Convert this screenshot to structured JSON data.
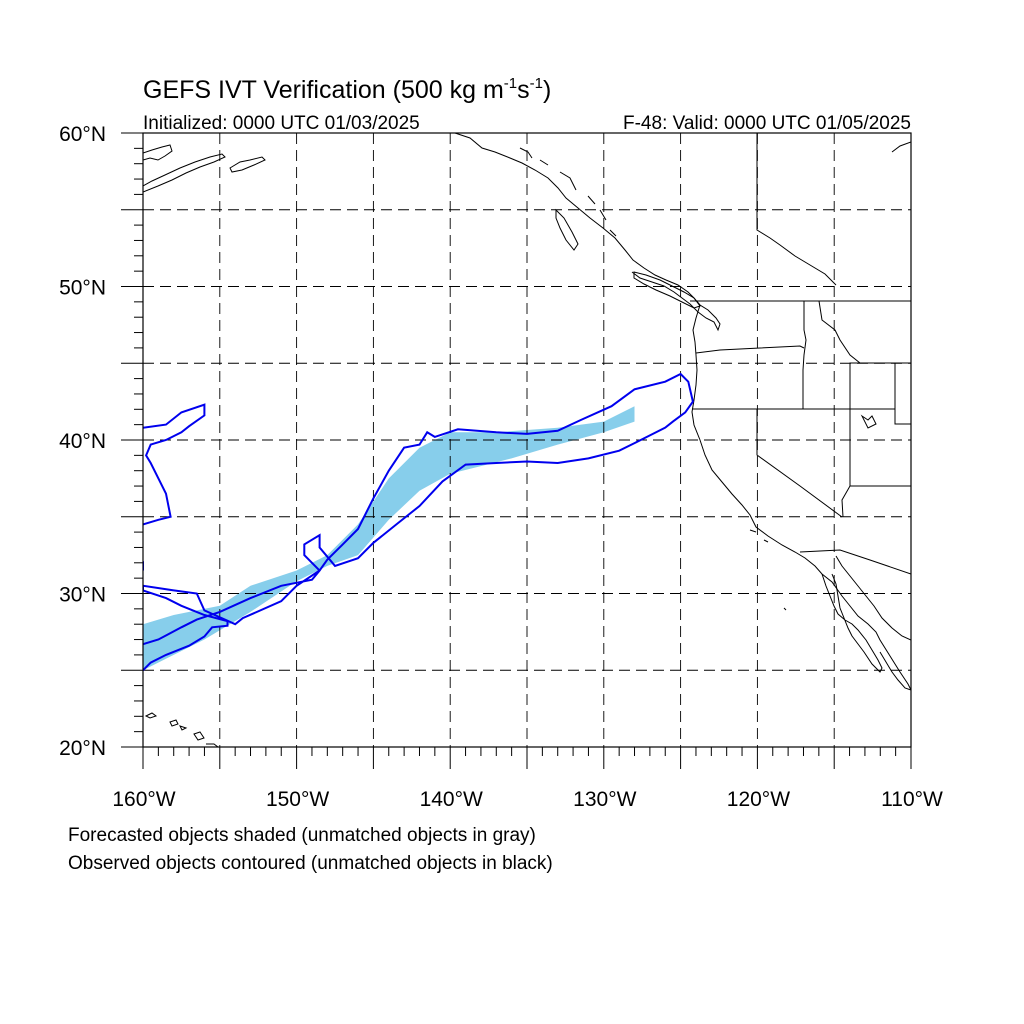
{
  "title": {
    "main": "GEFS IVT Verification (500 kg m",
    "exp1": "-1",
    "mid": "s",
    "exp2": "-1",
    "close": ")"
  },
  "subtitle": {
    "left": "Initialized: 0000 UTC 01/03/2025",
    "right": "F-48: Valid: 0000 UTC 01/05/2025"
  },
  "map": {
    "lon_range": [
      -160,
      -110
    ],
    "lat_range": [
      20,
      60
    ],
    "grid_lons": [
      -155,
      -150,
      -145,
      -140,
      -135,
      -130,
      -125,
      -120,
      -115
    ],
    "grid_lats": [
      25,
      30,
      35,
      40,
      45,
      50,
      55
    ],
    "lat_labels": [
      {
        "value": 60,
        "text": "60°N"
      },
      {
        "value": 50,
        "text": "50°N"
      },
      {
        "value": 40,
        "text": "40°N"
      },
      {
        "value": 30,
        "text": "30°N"
      },
      {
        "value": 20,
        "text": "20°N"
      }
    ],
    "lon_labels": [
      {
        "value": -160,
        "text": "160°W"
      },
      {
        "value": -150,
        "text": "150°W"
      },
      {
        "value": -140,
        "text": "140°W"
      },
      {
        "value": -130,
        "text": "130°W"
      },
      {
        "value": -120,
        "text": "120°W"
      },
      {
        "value": -110,
        "text": "110°W"
      }
    ],
    "colors": {
      "forecast_fill": "#87ceeb",
      "observed_contour": "#0000ee",
      "coast": "#000000"
    }
  },
  "forecast_object": {
    "upper": [
      [
        -160,
        28
      ],
      [
        -158,
        28.6
      ],
      [
        -155,
        29.2
      ],
      [
        -153,
        30.5
      ],
      [
        -150,
        31.5
      ],
      [
        -148,
        32.5
      ],
      [
        -146,
        34.5
      ],
      [
        -144,
        37.5
      ],
      [
        -142,
        39.5
      ],
      [
        -140,
        40.5
      ],
      [
        -137,
        40.5
      ],
      [
        -133,
        40.8
      ],
      [
        -130,
        41.2
      ],
      [
        -128,
        42.2
      ]
    ],
    "lower": [
      [
        -128,
        41.2
      ],
      [
        -130,
        40.5
      ],
      [
        -133,
        39.7
      ],
      [
        -136,
        38.8
      ],
      [
        -138,
        38.3
      ],
      [
        -140,
        37.8
      ],
      [
        -142,
        36.7
      ],
      [
        -144,
        34.8
      ],
      [
        -146,
        32.5
      ],
      [
        -148,
        31.8
      ],
      [
        -150,
        30.8
      ],
      [
        -153,
        28.8
      ],
      [
        -156,
        27
      ],
      [
        -158,
        26
      ],
      [
        -160,
        25
      ]
    ]
  },
  "observed_objects": {
    "main": [
      [
        -160,
        25
      ],
      [
        -159.5,
        25.5
      ],
      [
        -158.5,
        26
      ],
      [
        -157,
        26.6
      ],
      [
        -156,
        27.2
      ],
      [
        -155.5,
        27.8
      ],
      [
        -154.5,
        27.9
      ],
      [
        -154.5,
        28.2
      ],
      [
        -156,
        28.6
      ],
      [
        -157.5,
        29.2
      ],
      [
        -158.5,
        29.7
      ],
      [
        -160,
        30.2
      ],
      [
        -160,
        30.5
      ],
      [
        -158,
        30.2
      ],
      [
        -156.5,
        30
      ],
      [
        -156,
        28.9
      ],
      [
        -154,
        28
      ],
      [
        -153.5,
        28.4
      ],
      [
        -151,
        29.5
      ],
      [
        -150,
        30.5
      ],
      [
        -148.5,
        31.5
      ],
      [
        -148,
        32.2
      ],
      [
        -147,
        33.2
      ],
      [
        -146,
        34.2
      ],
      [
        -145,
        36.2
      ],
      [
        -144,
        38
      ],
      [
        -143,
        39.5
      ],
      [
        -142,
        39.7
      ],
      [
        -141.5,
        40.5
      ],
      [
        -141,
        40.2
      ],
      [
        -139.5,
        40.7
      ],
      [
        -137,
        40.5
      ],
      [
        -135,
        40.4
      ],
      [
        -133,
        40.6
      ],
      [
        -131.5,
        41.3
      ],
      [
        -129.5,
        42.2
      ],
      [
        -128,
        43.3
      ],
      [
        -126,
        43.8
      ],
      [
        -125,
        44.3
      ],
      [
        -124.5,
        43.8
      ],
      [
        -124.2,
        42.5
      ],
      [
        -124.7,
        41.8
      ],
      [
        -125.5,
        41.2
      ],
      [
        -126,
        40.8
      ],
      [
        -127,
        40.3
      ],
      [
        -128,
        39.8
      ],
      [
        -129,
        39.3
      ],
      [
        -131,
        38.8
      ],
      [
        -133,
        38.5
      ],
      [
        -135,
        38.6
      ],
      [
        -137,
        38.5
      ],
      [
        -139,
        38.4
      ],
      [
        -140.5,
        37.3
      ],
      [
        -142,
        35.7
      ],
      [
        -143.5,
        34.5
      ],
      [
        -145,
        33.3
      ],
      [
        -146,
        32.3
      ],
      [
        -147.5,
        31.8
      ],
      [
        -148,
        32.4
      ],
      [
        -148.5,
        33
      ],
      [
        -148.5,
        33.8
      ],
      [
        -149.5,
        33.2
      ],
      [
        -149.5,
        32.5
      ],
      [
        -148.5,
        31.5
      ],
      [
        -149,
        30.9
      ],
      [
        -151,
        30.5
      ],
      [
        -153,
        29.7
      ],
      [
        -155,
        28.8
      ],
      [
        -156.5,
        28.3
      ],
      [
        -157.5,
        27.8
      ],
      [
        -159,
        27
      ],
      [
        -160,
        26.7
      ]
    ],
    "west": [
      [
        -160,
        40.8
      ],
      [
        -158.5,
        41
      ],
      [
        -157.5,
        41.8
      ],
      [
        -156,
        42.3
      ],
      [
        -156,
        41.6
      ],
      [
        -157,
        40.9
      ],
      [
        -157.5,
        40.5
      ],
      [
        -158.5,
        40
      ],
      [
        -159.5,
        39.7
      ],
      [
        -159.8,
        39
      ],
      [
        -159.5,
        38.5
      ],
      [
        -159,
        37.5
      ],
      [
        -158.5,
        36.5
      ],
      [
        -158.2,
        35
      ],
      [
        -159,
        34.8
      ],
      [
        -160,
        34.5
      ]
    ]
  }
}
